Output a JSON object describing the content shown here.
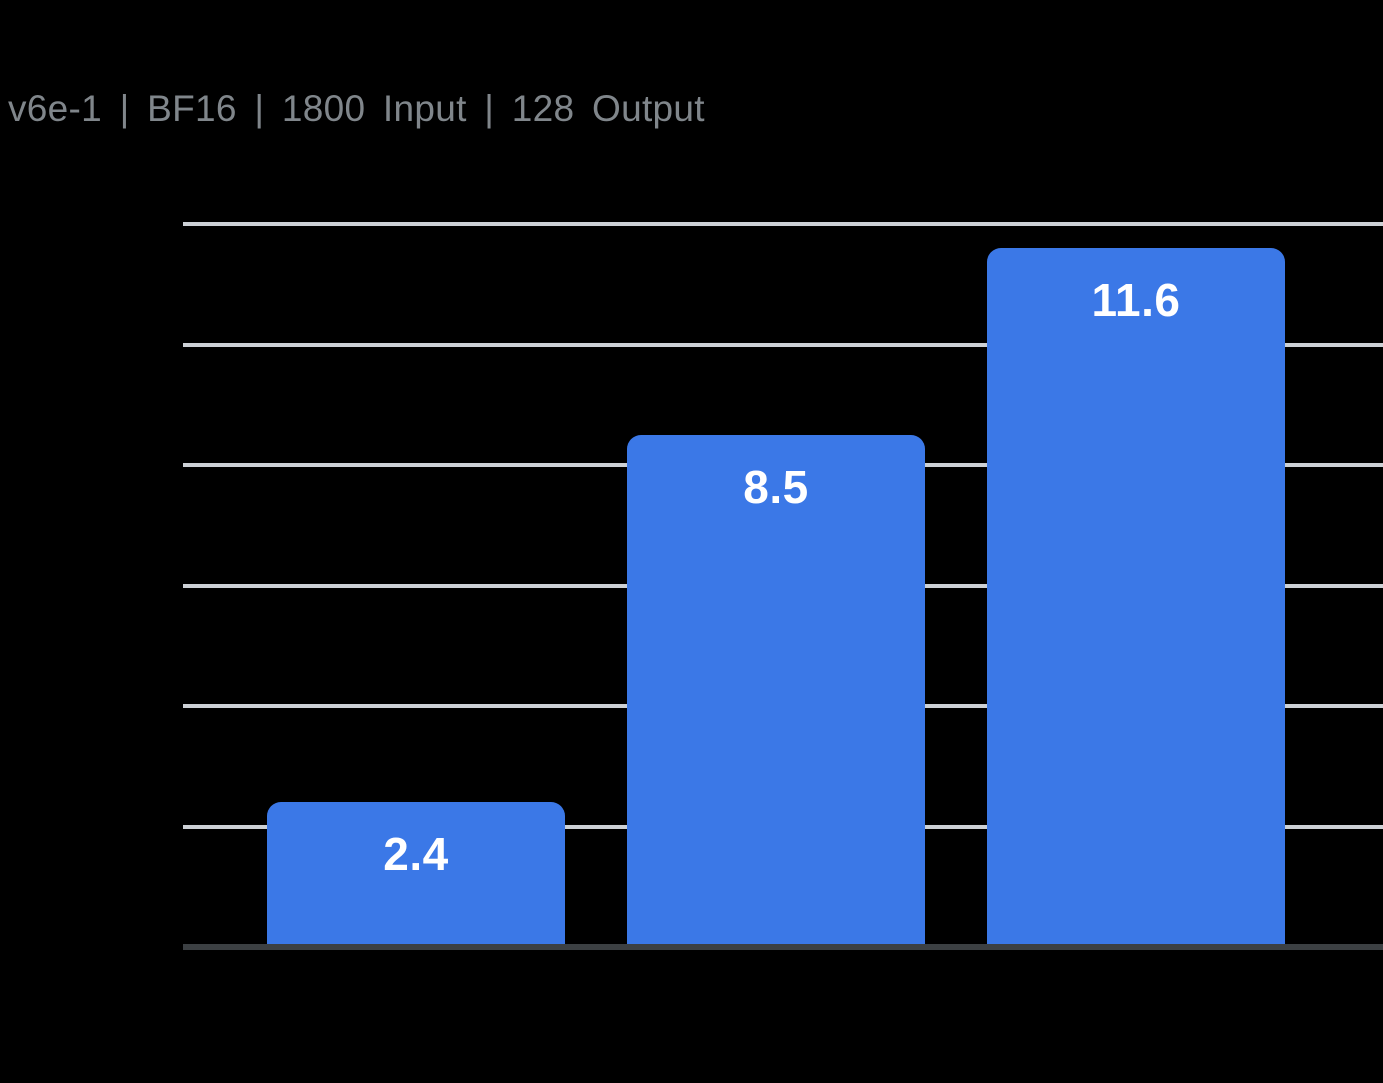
{
  "page": {
    "background": "#000000"
  },
  "header": {
    "title": "v6e-1 | BF16 | 1800 Input | 128 Output",
    "color": "#80868B"
  },
  "chart_data": {
    "type": "bar",
    "title": "v6e-1 | BF16 | 1800 Input | 128 Output",
    "values": [
      2.4,
      8.5,
      11.6
    ],
    "data_labels": [
      "2.4",
      "8.5",
      "11.6"
    ],
    "xlabel": "",
    "ylabel": "",
    "ylim": [
      0,
      12
    ],
    "gridline_step": 2,
    "grid": true,
    "axis_tick_labels_visible": false,
    "legend_position": "none",
    "colors": {
      "background": "#000000",
      "bar": "#3B78E7",
      "bar_label": "#FFFFFF",
      "gridline": "#CDD1D6",
      "baseline": "#3C4043",
      "title": "#80868B"
    }
  }
}
